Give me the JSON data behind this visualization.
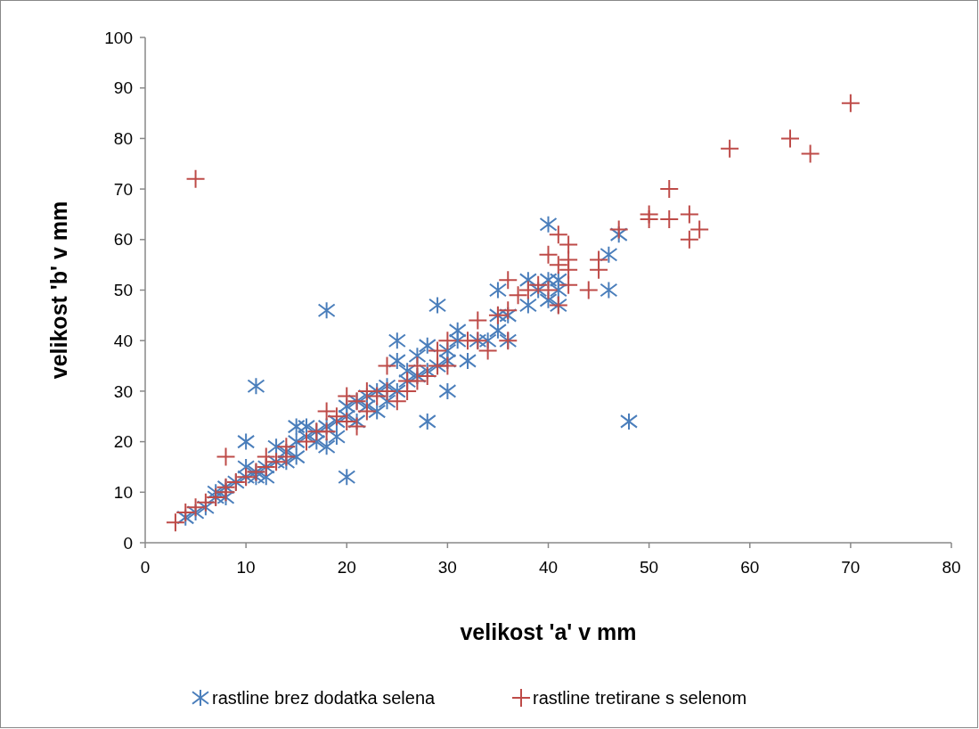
{
  "chart_data": {
    "type": "scatter",
    "xlabel": "velikost 'a' v mm",
    "ylabel": "velikost 'b' v mm",
    "xlim": [
      0,
      80
    ],
    "ylim": [
      0,
      100
    ],
    "xticks": [
      0,
      10,
      20,
      30,
      40,
      50,
      60,
      70,
      80
    ],
    "yticks": [
      0,
      10,
      20,
      30,
      40,
      50,
      60,
      70,
      80,
      90,
      100
    ],
    "grid": false,
    "legend": "bottom",
    "series": [
      {
        "name": "rastline brez dodatka selena",
        "color": "#4a7ebb",
        "x": [
          18,
          11,
          10,
          20,
          28,
          48,
          29,
          40,
          47,
          46,
          46,
          38,
          38,
          35,
          25,
          41,
          40,
          41,
          36,
          35,
          31,
          32,
          30,
          30,
          28,
          28,
          4,
          5,
          6,
          7,
          7,
          8,
          8,
          9,
          10,
          10,
          11,
          11,
          12,
          12,
          13,
          13,
          14,
          14,
          15,
          15,
          15,
          16,
          16,
          17,
          17,
          18,
          18,
          19,
          19,
          20,
          20,
          21,
          21,
          22,
          22,
          23,
          23,
          24,
          24,
          25,
          25,
          26,
          26,
          27,
          27,
          29,
          30,
          31,
          33,
          34,
          35,
          36,
          39,
          40,
          41
        ],
        "values": [
          46,
          31,
          20,
          13,
          24,
          24,
          47,
          63,
          61,
          57,
          50,
          52,
          47,
          50,
          40,
          52,
          48,
          47,
          40,
          42,
          42,
          36,
          30,
          36,
          39,
          34,
          5,
          6,
          7,
          9,
          10,
          9,
          11,
          12,
          13,
          15,
          14,
          13,
          15,
          13,
          16,
          19,
          16,
          18,
          17,
          20,
          23,
          21,
          23,
          20,
          22,
          19,
          23,
          21,
          24,
          25,
          27,
          24,
          28,
          27,
          29,
          26,
          30,
          28,
          31,
          30,
          36,
          32,
          34,
          33,
          37,
          35,
          38,
          40,
          40,
          40,
          45,
          45,
          50,
          52,
          50
        ]
      },
      {
        "name": "rastline tretirane s selenom",
        "color": "#be4b48",
        "marker": "cross",
        "x": [
          5,
          8,
          70,
          64,
          66,
          58,
          52,
          52,
          50,
          50,
          54,
          54,
          55,
          47,
          45,
          45,
          44,
          42,
          42,
          42,
          42,
          41,
          41,
          41,
          40,
          40,
          39,
          38,
          37,
          36,
          36,
          35,
          33,
          33,
          32,
          30,
          29,
          29,
          28,
          27,
          26,
          25,
          24,
          24,
          23,
          22,
          21,
          21,
          20,
          20,
          19,
          18,
          18,
          17,
          16,
          14,
          14,
          13,
          12,
          12,
          11,
          10,
          9,
          8,
          8,
          7,
          6,
          5,
          4,
          3,
          26,
          27,
          34,
          36,
          22,
          30
        ],
        "values": [
          72,
          17,
          87,
          80,
          77,
          78,
          70,
          64,
          65,
          64,
          65,
          60,
          62,
          62,
          56,
          54,
          50,
          59,
          56,
          54,
          51,
          61,
          55,
          47,
          57,
          50,
          51,
          50,
          49,
          52,
          46,
          45,
          44,
          40,
          40,
          40,
          38,
          35,
          33,
          35,
          32,
          28,
          35,
          30,
          29,
          30,
          23,
          28,
          29,
          24,
          25,
          26,
          22,
          22,
          20,
          19,
          17,
          16,
          15,
          17,
          14,
          13,
          12,
          11,
          10,
          9,
          8,
          7,
          6,
          4,
          30,
          32,
          38,
          40,
          26,
          35
        ]
      }
    ]
  }
}
